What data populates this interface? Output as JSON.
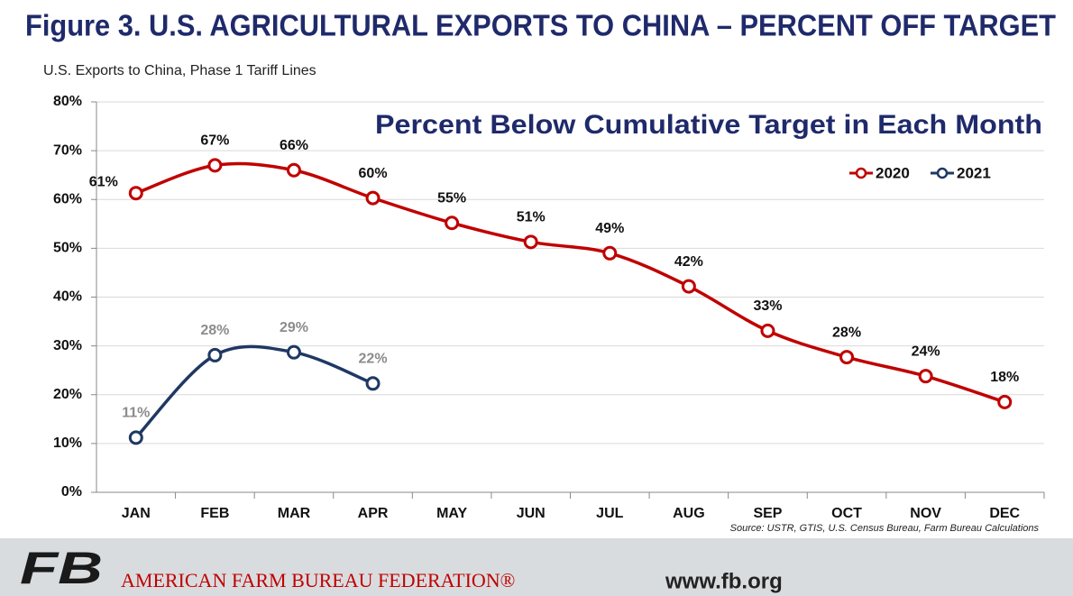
{
  "chart_data": {
    "type": "line",
    "title": "Figure 3. U.S. AGRICULTURAL EXPORTS TO CHINA – PERCENT OFF TARGET",
    "subtitle": "U.S. Exports to China, Phase 1 Tariff Lines",
    "annotation": "Percent Below Cumulative Target in Each Month",
    "source": "Source: USTR, GTIS, U.S. Census Bureau, Farm Bureau Calculations",
    "categories": [
      "JAN",
      "FEB",
      "MAR",
      "APR",
      "MAY",
      "JUN",
      "JUL",
      "AUG",
      "SEP",
      "OCT",
      "NOV",
      "DEC"
    ],
    "series": [
      {
        "name": "2020",
        "color": "#c00000",
        "label_color": "#111111",
        "values": [
          61.3,
          67,
          66,
          60.3,
          55.2,
          51.3,
          49,
          42.2,
          33.1,
          27.7,
          23.8,
          18.5
        ],
        "value_labels": [
          "61%",
          "67%",
          "66%",
          "60%",
          "55%",
          "51%",
          "49%",
          "42%",
          "33%",
          "28%",
          "24%",
          "18%"
        ]
      },
      {
        "name": "2021",
        "color": "#1f3864",
        "label_color": "#8c8c8c",
        "values": [
          11.2,
          28.1,
          28.7,
          22.3,
          null,
          null,
          null,
          null,
          null,
          null,
          null,
          null
        ],
        "value_labels": [
          "11%",
          "28%",
          "29%",
          "22%",
          null,
          null,
          null,
          null,
          null,
          null,
          null,
          null
        ]
      }
    ],
    "ylim": [
      0,
      80
    ],
    "yticks": [
      {
        "value": 0,
        "label": "0%"
      },
      {
        "value": 10,
        "label": "10%"
      },
      {
        "value": 20,
        "label": "20%"
      },
      {
        "value": 30,
        "label": "30%"
      },
      {
        "value": 40,
        "label": "40%"
      },
      {
        "value": 50,
        "label": "50%"
      },
      {
        "value": 60,
        "label": "60%"
      },
      {
        "value": 70,
        "label": "70%"
      },
      {
        "value": 80,
        "label": "80%"
      }
    ],
    "grid": true,
    "legend": "top-right"
  },
  "footer": {
    "logo": "FB",
    "org": "AMERICAN FARM BUREAU FEDERATION®",
    "url": "www.fb.org"
  }
}
